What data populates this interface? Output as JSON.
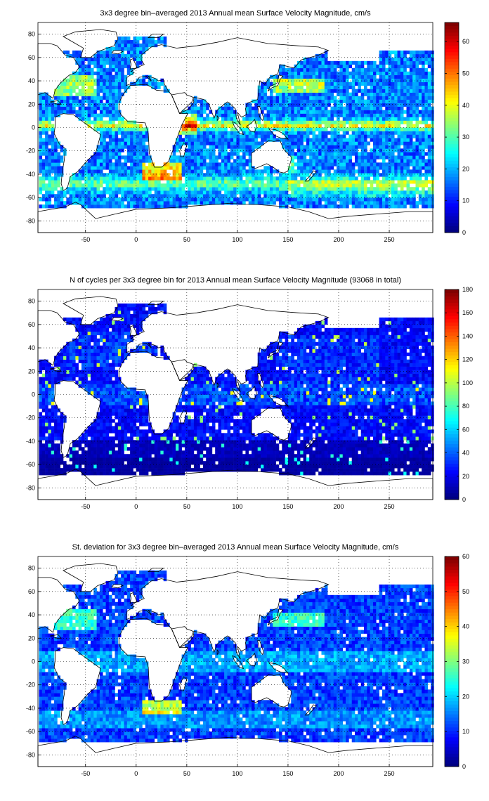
{
  "chart_data": [
    {
      "type": "heatmap",
      "title": "3x3 degree bin–averaged 2013 Annual mean Surface Velocity Magnitude, cm/s",
      "xlim": [
        -97,
        293
      ],
      "ylim": [
        -90,
        90
      ],
      "xticks": [
        -50,
        0,
        50,
        100,
        150,
        200,
        250
      ],
      "yticks": [
        -80,
        -60,
        -40,
        -20,
        0,
        20,
        40,
        60,
        80
      ],
      "grid": true,
      "bin_size_deg": 3,
      "colormap": "jet",
      "clim": [
        0,
        66
      ],
      "colorbar_ticks": [
        0,
        10,
        20,
        30,
        40,
        50,
        60
      ],
      "field": "mean_speed"
    },
    {
      "type": "heatmap",
      "title": "N of cycles per 3x3 degree bin for 2013 Annual mean Surface Velocity Magnitude (93068 in total)",
      "xlim": [
        -97,
        293
      ],
      "ylim": [
        -90,
        90
      ],
      "xticks": [
        -50,
        0,
        50,
        100,
        150,
        200,
        250
      ],
      "yticks": [
        -80,
        -60,
        -40,
        -20,
        0,
        20,
        40,
        60,
        80
      ],
      "grid": true,
      "bin_size_deg": 3,
      "colormap": "jet",
      "clim": [
        0,
        180
      ],
      "colorbar_ticks": [
        0,
        20,
        40,
        60,
        80,
        100,
        120,
        140,
        160,
        180
      ],
      "field": "count"
    },
    {
      "type": "heatmap",
      "title": "St. deviation for 3x3 degree bin–averaged 2013 Annual mean Surface Velocity Magnitude, cm/s",
      "xlim": [
        -97,
        293
      ],
      "ylim": [
        -90,
        90
      ],
      "xticks": [
        -50,
        0,
        50,
        100,
        150,
        200,
        250
      ],
      "yticks": [
        -80,
        -60,
        -40,
        -20,
        0,
        20,
        40,
        60,
        80
      ],
      "grid": true,
      "bin_size_deg": 3,
      "colormap": "jet",
      "clim": [
        0,
        60
      ],
      "colorbar_ticks": [
        0,
        10,
        20,
        30,
        40,
        50,
        60
      ],
      "field": "std"
    }
  ]
}
